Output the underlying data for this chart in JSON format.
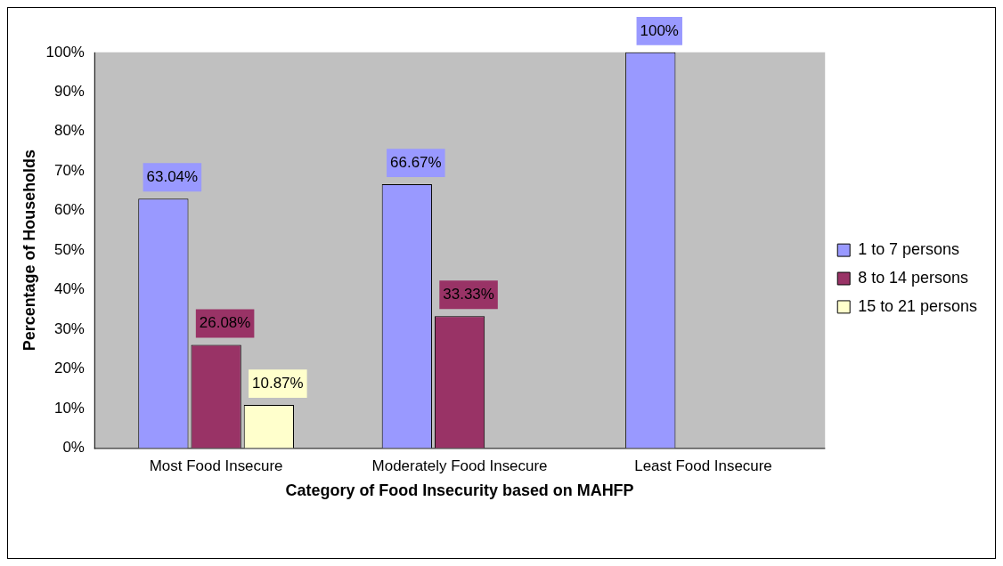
{
  "chart_data": {
    "type": "bar",
    "xlabel": "Category of Food Insecurity based on MAHFP",
    "ylabel": "Percentage of Households",
    "categories": [
      "Most Food Insecure",
      "Moderately Food Insecure",
      "Least Food Insecure"
    ],
    "series": [
      {
        "name": "1 to 7 persons",
        "color": "#9999ff",
        "values": [
          63.04,
          66.67,
          100
        ],
        "value_labels": [
          "63.04%",
          "66.67%",
          "100%"
        ]
      },
      {
        "name": "8 to 14 persons",
        "color": "#993366",
        "values": [
          26.08,
          33.33,
          0
        ],
        "value_labels": [
          "26.08%",
          "33.33%",
          null
        ]
      },
      {
        "name": "15 to 21 persons",
        "color": "#ffffcc",
        "values": [
          10.87,
          0,
          0
        ],
        "value_labels": [
          "10.87%",
          null,
          null
        ]
      }
    ],
    "ylim": [
      0,
      100
    ],
    "yticks": [
      {
        "value": 0,
        "label": "0%"
      },
      {
        "value": 10,
        "label": "10%"
      },
      {
        "value": 20,
        "label": "20%"
      },
      {
        "value": 30,
        "label": "30%"
      },
      {
        "value": 40,
        "label": "40%"
      },
      {
        "value": 50,
        "label": "50%"
      },
      {
        "value": 60,
        "label": "60%"
      },
      {
        "value": 70,
        "label": "70%"
      },
      {
        "value": 80,
        "label": "80%"
      },
      {
        "value": 90,
        "label": "90%"
      },
      {
        "value": 100,
        "label": "100%"
      }
    ],
    "grid": false,
    "legend": "right"
  }
}
